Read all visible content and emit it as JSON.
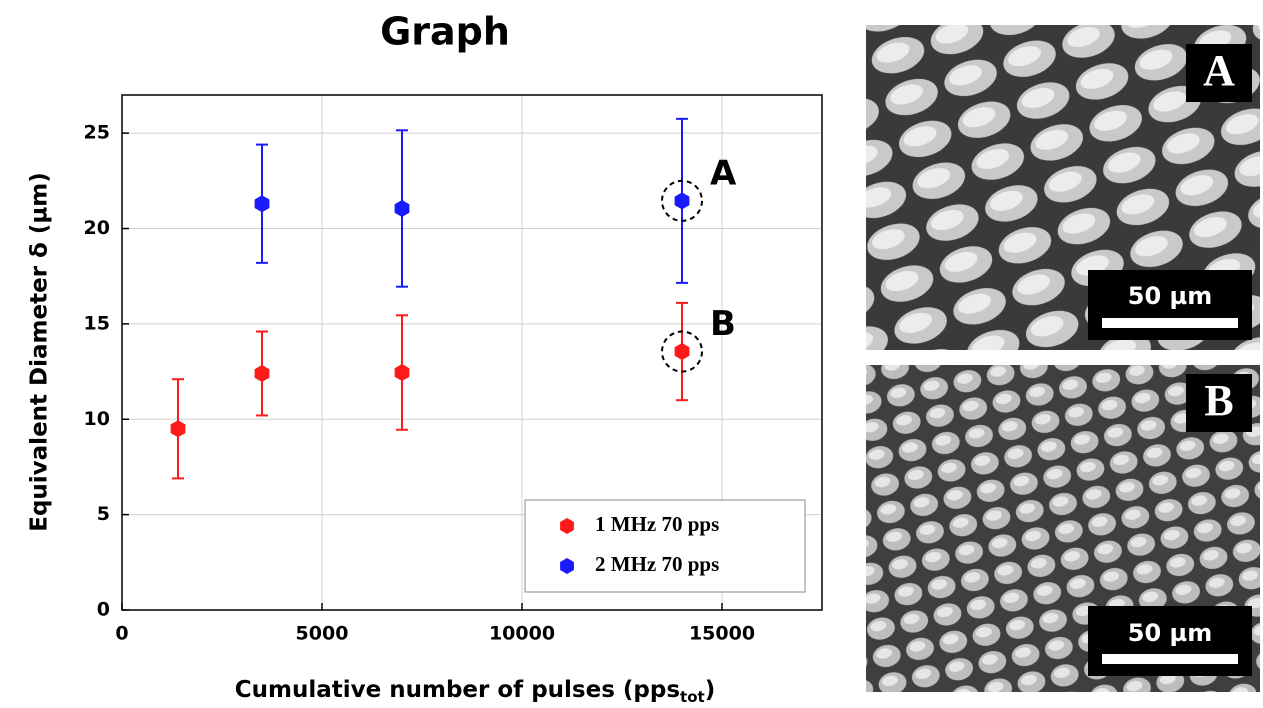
{
  "chart_data": {
    "type": "errorbar-scatter",
    "title": "Graph",
    "ylabel": "Equivalent Diameter δ (µm)",
    "xlabel": {
      "main": "Cumulative number of pulses (pps",
      "sub": "tot",
      "close": ")"
    },
    "xlim": [
      0,
      17500
    ],
    "xticks": [
      0,
      5000,
      10000,
      15000
    ],
    "ylim": [
      0,
      27
    ],
    "yticks": [
      0,
      5,
      10,
      15,
      20,
      25
    ],
    "grid": true,
    "legend": "lower right",
    "series": [
      {
        "name": "1 MHz 70 pps",
        "color": "#ff1a1a",
        "x": [
          1400,
          3500,
          7000,
          14000
        ],
        "values": [
          9.5,
          12.4,
          12.45,
          13.55
        ],
        "errors": [
          2.6,
          2.2,
          3.0,
          2.55
        ]
      },
      {
        "name": "2 MHz 70 pps",
        "color": "#1a1aff",
        "x": [
          3500,
          7000,
          14000
        ],
        "values": [
          21.3,
          21.05,
          21.45
        ],
        "errors": [
          3.1,
          4.1,
          4.3
        ]
      }
    ],
    "annotations": [
      {
        "text": "A",
        "x": 14000,
        "y": 21.45
      },
      {
        "text": "B",
        "x": 14000,
        "y": 13.55
      }
    ]
  },
  "panels": [
    {
      "label": "A",
      "scale": "50 µm"
    },
    {
      "label": "B",
      "scale": "50 µm"
    }
  ]
}
